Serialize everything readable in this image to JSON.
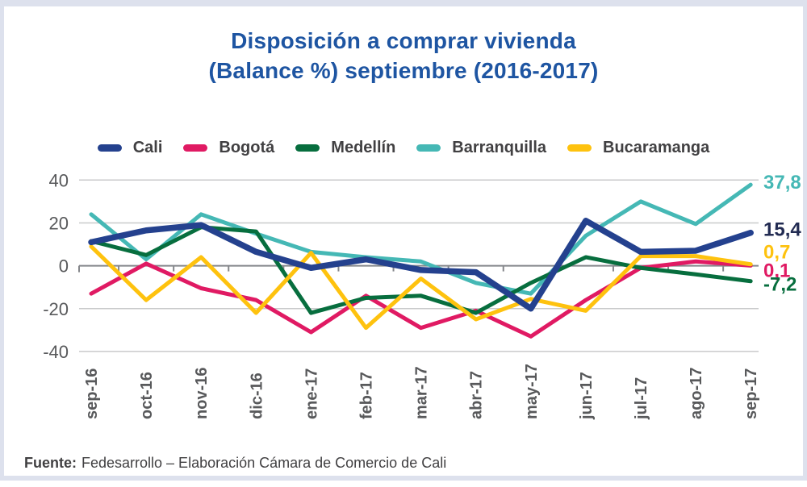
{
  "title": {
    "line1": "Disposición a comprar vivienda",
    "line2": "(Balance %) septiembre (2016-2017)"
  },
  "footer": {
    "source_label": "Fuente:",
    "source_text": "Fedesarrollo – Elaboración Cámara de Comercio de Cali"
  },
  "colors": {
    "title": "#1e55a2",
    "frame_border": "#dde1ed",
    "grid_line": "#c9cacb",
    "zero_axis": "#85878b",
    "axis_text": "#58595b",
    "legend_text": "#414042"
  },
  "chart_data": {
    "type": "line",
    "title": "Disposición a comprar vivienda (Balance %) septiembre (2016-2017)",
    "xlabel": "",
    "ylabel": "",
    "ylim": [
      -40,
      40
    ],
    "yticks": [
      40,
      20,
      0,
      -20,
      -40
    ],
    "grid": true,
    "legend_position": "top",
    "categories": [
      "sep-16",
      "oct-16",
      "nov-16",
      "dic-16",
      "ene-17",
      "feb-17",
      "mar-17",
      "abr-17",
      "may-17",
      "jun-17",
      "jul-17",
      "ago-17",
      "sep-17"
    ],
    "series": [
      {
        "name": "Cali",
        "color": "#24418e",
        "end_label": "15,4",
        "end_label_color": "#222b52",
        "values": [
          11,
          16.5,
          19,
          6.5,
          -1,
          3,
          -2,
          -3,
          -20,
          21,
          6.5,
          7,
          15.4
        ]
      },
      {
        "name": "Bogotá",
        "color": "#e01a63",
        "end_label": "0,1",
        "end_label_color": "#e01a63",
        "values": [
          -13,
          1,
          -10.5,
          -16,
          -31,
          -14,
          -29,
          -21,
          -33,
          -16,
          -1,
          2,
          0.1
        ]
      },
      {
        "name": "Medellín",
        "color": "#076e3e",
        "end_label": "-7,2",
        "end_label_color": "#076e3e",
        "values": [
          11.5,
          5,
          18,
          16,
          -22,
          -15,
          -14,
          -22,
          -8,
          4,
          -1,
          -4,
          -7.2
        ]
      },
      {
        "name": "Barranquilla",
        "color": "#45b8b5",
        "end_label": "37,8",
        "end_label_color": "#45b8b5",
        "values": [
          24,
          3,
          24,
          15,
          6.5,
          4,
          2,
          -8,
          -13,
          14,
          30,
          19.5,
          37.8
        ]
      },
      {
        "name": "Bucaramanga",
        "color": "#fec20e",
        "end_label": "0,7",
        "end_label_color": "#fec20e",
        "values": [
          9,
          -16,
          4,
          -22,
          6,
          -29,
          -6,
          -25,
          -15.5,
          -21,
          4.5,
          4.5,
          0.7
        ]
      }
    ]
  }
}
